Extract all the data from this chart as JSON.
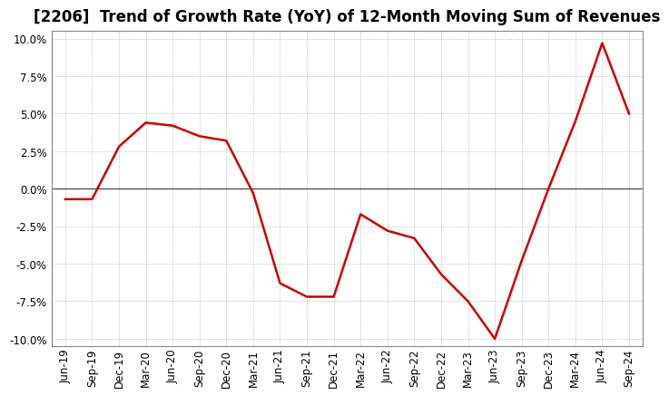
{
  "title": "[2206]  Trend of Growth Rate (YoY) of 12-Month Moving Sum of Revenues",
  "x_labels": [
    "Jun-19",
    "Sep-19",
    "Dec-19",
    "Mar-20",
    "Jun-20",
    "Sep-20",
    "Dec-20",
    "Mar-21",
    "Jun-21",
    "Sep-21",
    "Dec-21",
    "Mar-22",
    "Jun-22",
    "Sep-22",
    "Dec-22",
    "Mar-23",
    "Jun-23",
    "Sep-23",
    "Dec-23",
    "Mar-24",
    "Jun-24",
    "Sep-24"
  ],
  "y_values": [
    -0.007,
    -0.007,
    0.028,
    0.044,
    0.042,
    0.035,
    0.032,
    -0.003,
    -0.063,
    -0.072,
    -0.072,
    -0.017,
    -0.028,
    -0.033,
    -0.057,
    -0.075,
    -0.1,
    -0.048,
    0.0,
    0.045,
    0.097,
    0.05
  ],
  "line_color": "#cc0000",
  "line_width": 1.8,
  "background_color": "#ffffff",
  "plot_bg_color": "#ffffff",
  "grid_color": "#888888",
  "ylim": [
    -0.105,
    0.105
  ],
  "yticks": [
    -0.1,
    -0.075,
    -0.05,
    -0.025,
    0.0,
    0.025,
    0.05,
    0.075,
    0.1
  ],
  "title_fontsize": 12,
  "tick_fontsize": 8.5,
  "zero_line_color": "#555555",
  "spine_color": "#888888"
}
